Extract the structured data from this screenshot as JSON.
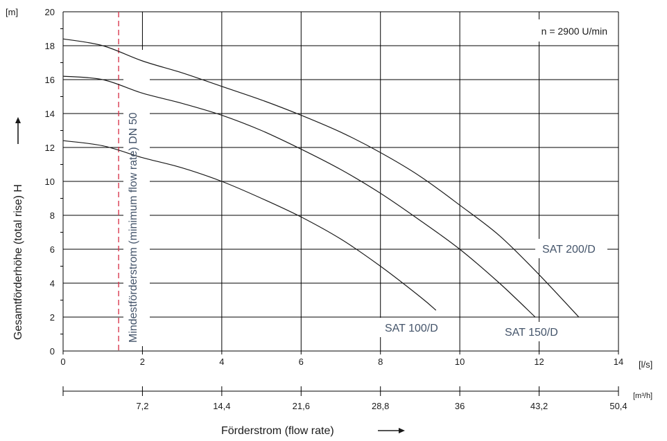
{
  "chart_data": {
    "type": "line",
    "note": "n = 2900 U/min",
    "ylabel": "Gesamtförderhöhe (total rise) H",
    "y_unit": "[m]",
    "ylim": [
      0,
      20
    ],
    "y_ticks": [
      0,
      2,
      4,
      6,
      8,
      10,
      12,
      14,
      16,
      18,
      20
    ],
    "xlabel": "Förderstrom (flow rate)",
    "x_unit": "[l/s]",
    "xlim": [
      0,
      14
    ],
    "x_ticks": [
      0,
      2,
      4,
      6,
      8,
      10,
      12,
      14
    ],
    "secondary_x": {
      "unit": "[m³/h]",
      "tick_labels": [
        "7,2",
        "14,4",
        "21,6",
        "28,8",
        "36",
        "43,2",
        "50,4"
      ],
      "tick_values_ls": [
        2,
        4,
        6,
        8,
        10,
        12,
        14
      ]
    },
    "min_flow_line": {
      "label": "Mindestförderstrom (minimum flow rate) DN 50",
      "x": 1.4,
      "color": "#d9384f"
    },
    "grid": true,
    "series": [
      {
        "name": "SAT 100/D",
        "color": "#1a1a1a",
        "points": [
          [
            0,
            12.4
          ],
          [
            1,
            12.1
          ],
          [
            2,
            11.4
          ],
          [
            3,
            10.8
          ],
          [
            4,
            10.0
          ],
          [
            5,
            9.0
          ],
          [
            6,
            7.9
          ],
          [
            7,
            6.6
          ],
          [
            8,
            5.0
          ],
          [
            9,
            3.2
          ],
          [
            9.4,
            2.4
          ]
        ]
      },
      {
        "name": "SAT 150/D",
        "color": "#1a1a1a",
        "points": [
          [
            0,
            16.2
          ],
          [
            1,
            16.0
          ],
          [
            2,
            15.2
          ],
          [
            3,
            14.6
          ],
          [
            4,
            13.9
          ],
          [
            5,
            13.0
          ],
          [
            6,
            11.9
          ],
          [
            7,
            10.7
          ],
          [
            8,
            9.3
          ],
          [
            9,
            7.7
          ],
          [
            10,
            6.0
          ],
          [
            11,
            4.0
          ],
          [
            11.9,
            2.0
          ]
        ]
      },
      {
        "name": "SAT 200/D",
        "color": "#1a1a1a",
        "points": [
          [
            0,
            18.4
          ],
          [
            1,
            18.0
          ],
          [
            2,
            17.1
          ],
          [
            3,
            16.4
          ],
          [
            4,
            15.6
          ],
          [
            5,
            14.8
          ],
          [
            6,
            13.9
          ],
          [
            7,
            12.9
          ],
          [
            8,
            11.7
          ],
          [
            9,
            10.3
          ],
          [
            10,
            8.6
          ],
          [
            11,
            6.8
          ],
          [
            12,
            4.5
          ],
          [
            13,
            2.0
          ]
        ]
      }
    ]
  }
}
